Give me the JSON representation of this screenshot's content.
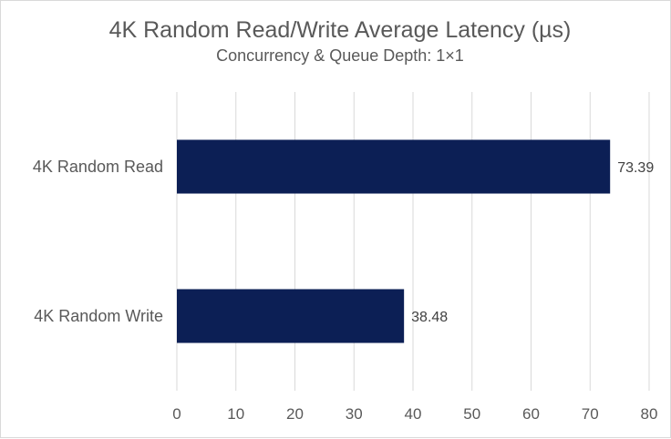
{
  "chart_data": {
    "type": "bar",
    "orientation": "horizontal",
    "title": "4K Random Read/Write Average Latency (µs)",
    "subtitle": "Concurrency & Queue Depth: 1×1",
    "categories": [
      "4K Random Read",
      "4K Random Write"
    ],
    "values": [
      73.39,
      38.48
    ],
    "value_labels": [
      "73.39",
      "38.48"
    ],
    "xlim": [
      0,
      80
    ],
    "x_ticks": [
      0,
      10,
      20,
      30,
      40,
      50,
      60,
      70,
      80
    ],
    "xlabel": "",
    "ylabel": "",
    "grid": true,
    "bar_color": "#0c1f55",
    "gridline_color": "#d9d9d9"
  }
}
